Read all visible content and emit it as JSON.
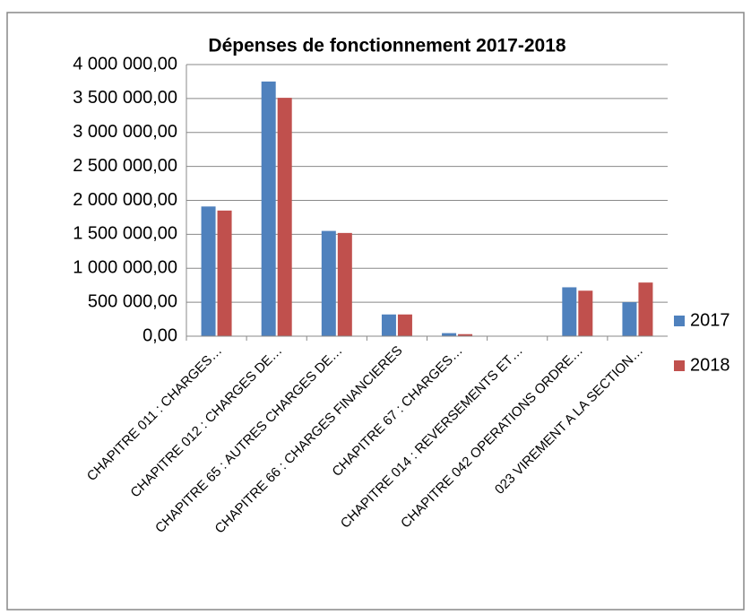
{
  "chart_data": {
    "type": "bar",
    "title": "Dépenses de fonctionnement 2017-2018",
    "categories": [
      "CHAPITRE 011 : CHARGES…",
      "CHAPITRE 012 : CHARGES DE…",
      "CHAPITRE 65 : AUTRES CHARGES DE…",
      "CHAPITRE 66 : CHARGES FINANCIERES",
      "CHAPITRE 67 : CHARGES…",
      "CHAPITRE 014 : REVERSEMENTS ET…",
      "CHAPITRE 042 OPERATIONS ORDRE…",
      "023 VIREMENT A LA SECTION…"
    ],
    "series": [
      {
        "name": "2017",
        "color": "#4f81bd",
        "values": [
          1910000,
          3750000,
          1550000,
          320000,
          45000,
          0,
          720000,
          500000
        ]
      },
      {
        "name": "2018",
        "color": "#c0504d",
        "values": [
          1850000,
          3510000,
          1520000,
          320000,
          30000,
          0,
          670000,
          790000
        ]
      }
    ],
    "ylim": [
      0,
      4000000
    ],
    "yticks": [
      {
        "value": 0,
        "label": "0,00"
      },
      {
        "value": 500000,
        "label": "500 000,00"
      },
      {
        "value": 1000000,
        "label": "1 000 000,00"
      },
      {
        "value": 1500000,
        "label": "1 500 000,00"
      },
      {
        "value": 2000000,
        "label": "2 000 000,00"
      },
      {
        "value": 2500000,
        "label": "2 500 000,00"
      },
      {
        "value": 3000000,
        "label": "3 000 000,00"
      },
      {
        "value": 3500000,
        "label": "3 500 000,00"
      },
      {
        "value": 4000000,
        "label": "4 000 000,00"
      }
    ],
    "grid": true,
    "legend": "right"
  }
}
